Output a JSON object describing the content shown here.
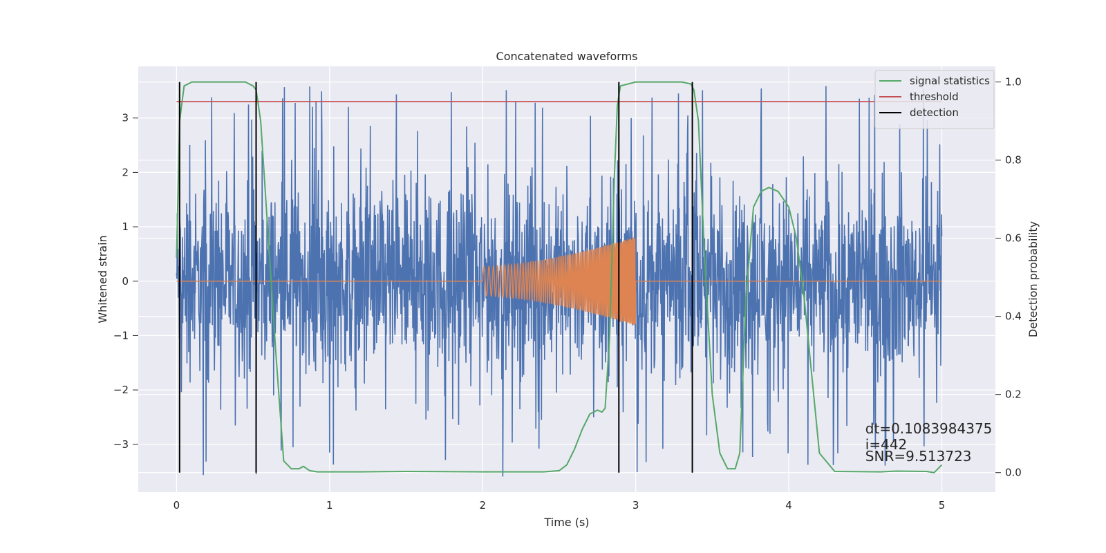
{
  "chart_data": {
    "type": "line",
    "title": "Concatenated waveforms",
    "xlabel": "Time (s)",
    "ylabel_left": "Whitened strain",
    "ylabel_right": "Detection probability",
    "xlim": [
      -0.25,
      5.35
    ],
    "ylim_left": [
      -3.88,
      3.95
    ],
    "ylim_right": [
      -0.05,
      1.04
    ],
    "x_ticks": [
      0,
      1,
      2,
      3,
      4,
      5
    ],
    "y_ticks_left": [
      -3,
      -2,
      -1,
      0,
      1,
      2,
      3
    ],
    "y_ticks_right": [
      0.0,
      0.2,
      0.4,
      0.6,
      0.8,
      1.0
    ],
    "grid": true,
    "legend_position": "top-right",
    "series": [
      {
        "type": "noise",
        "color": "#4c72b0",
        "x_range": [
          0,
          5
        ],
        "typical_amplitude": 1.8,
        "max_amplitude": 3.6
      },
      {
        "type": "chirp",
        "color": "#dd8452",
        "x_start": 2.0,
        "x_end": 3.0,
        "amplitude_start": 0.27,
        "amplitude_end": 0.82
      },
      {
        "name": "signal statistics",
        "axis": "right",
        "color": "#55a868",
        "x": [
          0.0,
          0.02,
          0.05,
          0.1,
          0.3,
          0.45,
          0.5,
          0.52,
          0.55,
          0.6,
          0.65,
          0.7,
          0.75,
          0.8,
          0.83,
          0.87,
          0.92,
          1.2,
          1.5,
          2.0,
          2.4,
          2.5,
          2.55,
          2.6,
          2.65,
          2.7,
          2.75,
          2.78,
          2.8,
          2.83,
          2.86,
          2.88,
          2.9,
          3.0,
          3.3,
          3.36,
          3.38,
          3.41,
          3.45,
          3.5,
          3.55,
          3.6,
          3.65,
          3.68,
          3.72,
          3.77,
          3.82,
          3.87,
          3.93,
          4.0,
          4.05,
          4.1,
          4.15,
          4.2,
          4.3,
          4.6,
          4.7,
          4.9,
          4.95,
          5.0
        ],
        "y": [
          0.55,
          0.9,
          0.99,
          1.0,
          1.0,
          1.0,
          0.99,
          0.98,
          0.9,
          0.6,
          0.3,
          0.03,
          0.01,
          0.01,
          0.016,
          0.005,
          0.002,
          0.002,
          0.003,
          0.002,
          0.002,
          0.005,
          0.02,
          0.06,
          0.11,
          0.15,
          0.16,
          0.155,
          0.165,
          0.35,
          0.75,
          0.94,
          0.99,
          1.0,
          1.0,
          0.995,
          0.98,
          0.9,
          0.55,
          0.2,
          0.05,
          0.01,
          0.01,
          0.05,
          0.45,
          0.68,
          0.72,
          0.73,
          0.72,
          0.68,
          0.6,
          0.45,
          0.25,
          0.05,
          0.003,
          0.002,
          0.004,
          0.003,
          0.0,
          0.02
        ]
      },
      {
        "name": "threshold",
        "axis": "right",
        "color": "#c44e52",
        "x": [
          0.0,
          5.0
        ],
        "y": [
          0.95,
          0.95
        ]
      },
      {
        "name": "detection",
        "color": "#000000",
        "x_positions": [
          0.02,
          0.52,
          2.89,
          3.37
        ],
        "y_span_right": [
          0.0,
          1.0
        ]
      }
    ],
    "annotations": [
      {
        "text": "dt=0.1083984375",
        "x": 4.5,
        "y_right": 0.1
      },
      {
        "text": " i=442",
        "x": 4.5,
        "y_right": 0.06
      },
      {
        "text": "SNR=9.513723",
        "x": 4.5,
        "y_right": 0.03
      }
    ],
    "background": "#eaeaf2"
  }
}
